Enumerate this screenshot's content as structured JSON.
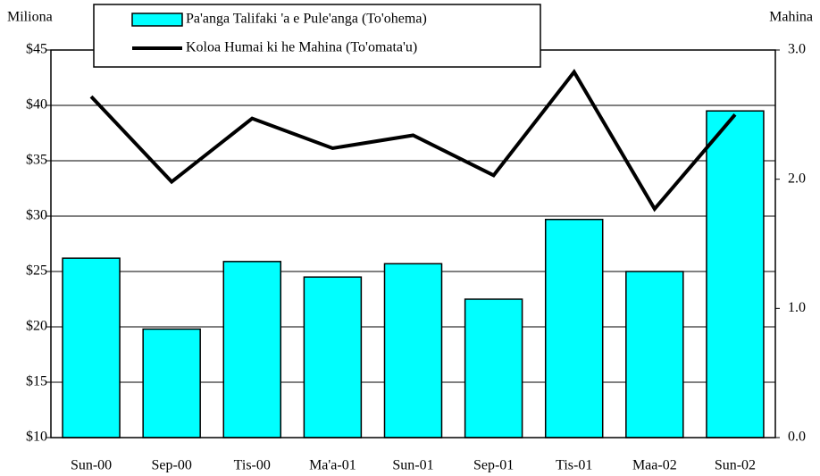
{
  "chart_data": {
    "type": "bar-line",
    "ylabel": "Miliona",
    "y2label": "Mahina",
    "categories": [
      "Sun-00",
      "Sep-00",
      "Tis-00",
      "Ma'a-01",
      "Sun-01",
      "Sep-01",
      "Tis-01",
      "Maa-02",
      "Sun-02"
    ],
    "series": [
      {
        "name": "Pa'anga Talifaki 'a e Pule'anga (To'ohema)",
        "type": "bar",
        "color": "#00ffff",
        "axis": "y",
        "values": [
          26.2,
          19.8,
          25.9,
          24.5,
          25.7,
          22.5,
          29.7,
          25.0,
          39.5
        ]
      },
      {
        "name": "Koloa Humai ki he Mahina (To'omata'u)",
        "type": "line",
        "color": "#000000",
        "axis": "y2",
        "values": [
          2.64,
          1.98,
          2.47,
          2.24,
          2.34,
          2.03,
          2.83,
          1.77,
          2.5
        ]
      }
    ],
    "ylim": [
      10,
      45
    ],
    "yticks": [
      {
        "value": 10,
        "label": "$10"
      },
      {
        "value": 15,
        "label": "$15"
      },
      {
        "value": 20,
        "label": "$20"
      },
      {
        "value": 25,
        "label": "$25"
      },
      {
        "value": 30,
        "label": "$30"
      },
      {
        "value": 35,
        "label": "$35"
      },
      {
        "value": 40,
        "label": "$40"
      },
      {
        "value": 45,
        "label": "$45"
      }
    ],
    "y2lim": [
      0,
      3
    ],
    "y2ticks": [
      {
        "value": 0,
        "label": "0.0"
      },
      {
        "value": 1,
        "label": "1.0"
      },
      {
        "value": 2,
        "label": "2.0"
      },
      {
        "value": 3,
        "label": "3.0"
      }
    ],
    "grid": true,
    "legend": "top"
  }
}
